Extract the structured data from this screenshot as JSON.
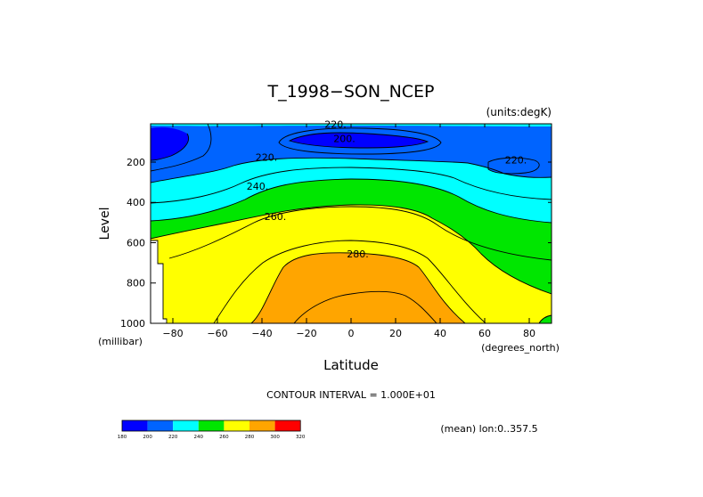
{
  "chart_data": {
    "type": "contour",
    "title": "T_1998−SON_NCEP",
    "units_label": "(units:degK)",
    "xlabel": "Latitude",
    "ylabel": "Level",
    "x_unit_label": "(degrees_north)",
    "y_unit_label": "(millibar)",
    "x_ticks": [
      -80,
      -60,
      -40,
      -20,
      0,
      20,
      40,
      60,
      80
    ],
    "x_tick_labels": [
      "−80",
      "−60",
      "−40",
      "−20",
      "0",
      "20",
      "40",
      "60",
      "80"
    ],
    "y_ticks": [
      200,
      400,
      600,
      800,
      1000
    ],
    "y_tick_labels": [
      "200",
      "400",
      "600",
      "800",
      "1000"
    ],
    "xlim": [
      -90,
      90
    ],
    "ylim": [
      1000,
      10
    ],
    "contour_interval_text": "CONTOUR INTERVAL = 1.000E+01",
    "mean_text": "(mean) lon:0..357.5",
    "contour_labels": [
      {
        "text": "220.",
        "lat": -7,
        "level": 12
      },
      {
        "text": "200.",
        "lat": -3,
        "level": 82
      },
      {
        "text": "220.",
        "lat": -38,
        "level": 175
      },
      {
        "text": "220.",
        "lat": 74,
        "level": 190
      },
      {
        "text": "240.",
        "lat": -42,
        "level": 320
      },
      {
        "text": "260.",
        "lat": -34,
        "level": 470
      },
      {
        "text": "280.",
        "lat": 3,
        "level": 655
      }
    ],
    "colorbar": {
      "levels": [
        "180",
        "200",
        "220",
        "240",
        "260",
        "280",
        "300",
        "320"
      ],
      "colors": [
        "#0000ff",
        "#0064ff",
        "#00ffff",
        "#00e600",
        "#ffff00",
        "#ffa500",
        "#ff0000"
      ]
    }
  }
}
